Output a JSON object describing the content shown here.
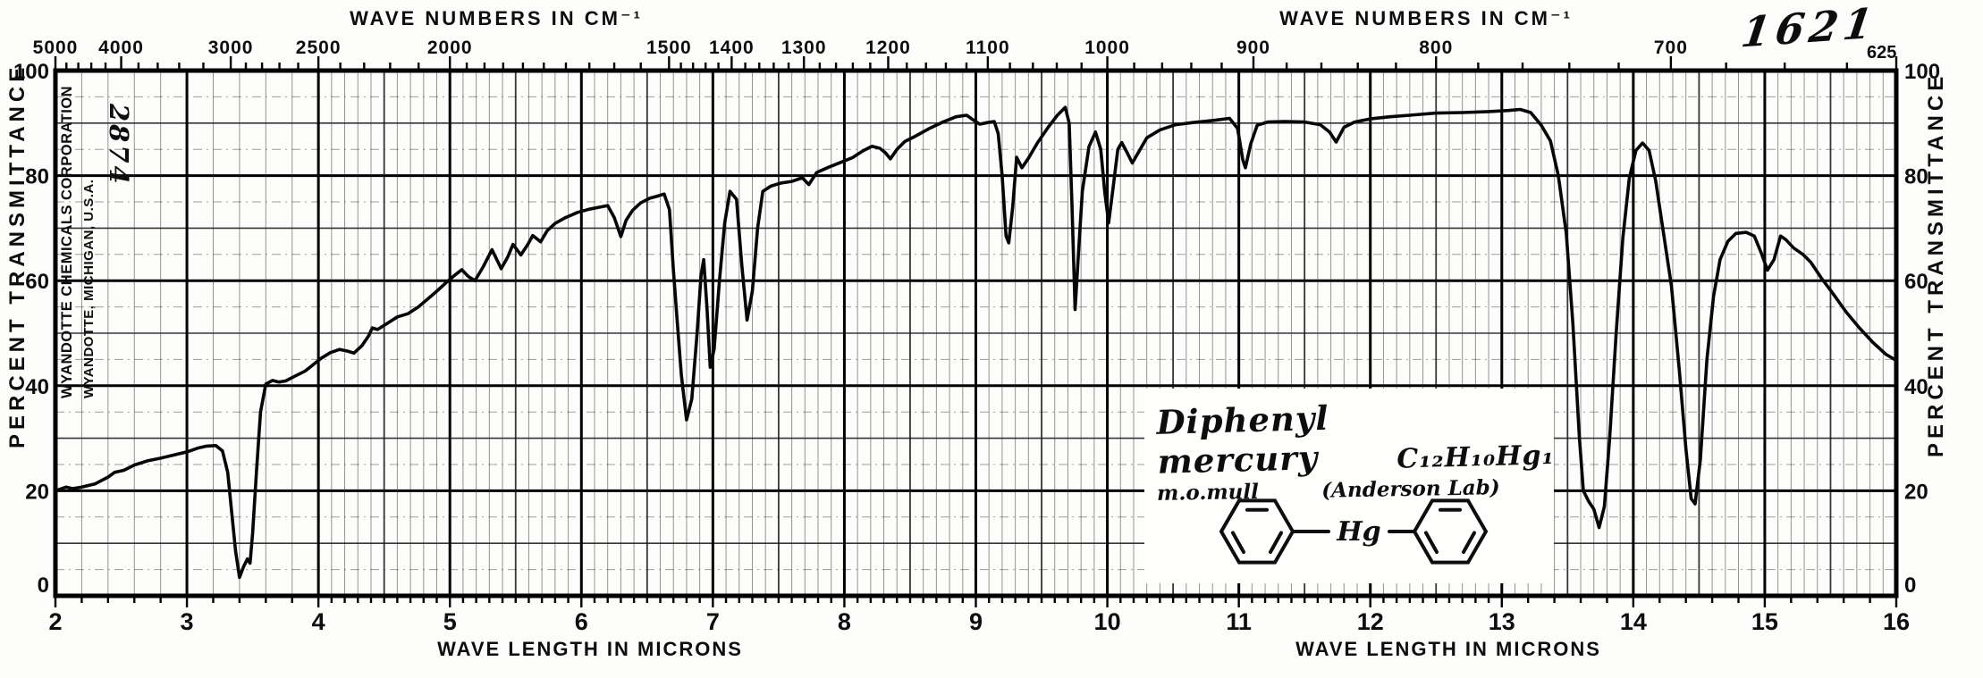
{
  "header": {
    "wave_numbers_title_left": "WAVE NUMBERS IN CM⁻¹",
    "wave_numbers_title_right": "WAVE NUMBERS IN CM⁻¹",
    "handwritten_id": "1621"
  },
  "stamps": {
    "company_line1": "WYANDOTTE CHEMICALS CORPORATION",
    "company_line2": "WYANDOTTE, MICHIGAN, U.S.A.",
    "handwritten_number": "2874"
  },
  "axes": {
    "left_label": "PERCENT TRANSMITTANCE",
    "right_label": "PERCENT TRANSMITTANCE",
    "bottom_label_left": "WAVE LENGTH IN MICRONS",
    "bottom_label_right": "WAVE LENGTH IN MICRONS",
    "transmittance_ticks": [
      100,
      80,
      60,
      40,
      20,
      0
    ],
    "micron_ticks": [
      2,
      3,
      4,
      5,
      6,
      7,
      8,
      9,
      10,
      11,
      12,
      13,
      14,
      15,
      16
    ],
    "wavenumber_major_ticks": [
      5000,
      4000,
      3000,
      2500,
      2000,
      1500,
      1400,
      1300,
      1200,
      1100,
      1000,
      900,
      800,
      700
    ],
    "wavenumber_end_tick": 625,
    "wavenumber_minor_ticks": [
      4800,
      4600,
      4400,
      4200,
      3800,
      3600,
      3400,
      3200,
      2900,
      2800,
      2700,
      2600,
      2400,
      2300,
      2200,
      2100,
      1950,
      1900,
      1850,
      1800,
      1750,
      1700,
      1650,
      1600,
      1550,
      1480,
      1460,
      1440,
      1420,
      1380,
      1360,
      1340,
      1320,
      1280,
      1260,
      1240,
      1220,
      1180,
      1160,
      1140,
      1120,
      1080,
      1060,
      1040,
      1020,
      980,
      960,
      940,
      920,
      880,
      860,
      840,
      820,
      780,
      760,
      740,
      720,
      680,
      660,
      640
    ]
  },
  "annotation": {
    "compound_name": "Diphenyl mercury",
    "formula": "C₁₂H₁₀Hg₁",
    "method": "m.o.mull",
    "lab": "(Anderson Lab)",
    "hg_symbol": "Hg",
    "structure": "phenyl-Hg-phenyl"
  },
  "chart_data": {
    "type": "line",
    "title": "Diphenyl mercury C₁₂H₁₀Hg₁",
    "xlabel": "WAVE LENGTH IN MICRONS",
    "ylabel": "PERCENT TRANSMITTANCE",
    "top_axis_label": "WAVE NUMBERS IN CM⁻¹",
    "x_units": "microns",
    "x_range": [
      2,
      16
    ],
    "y_range": [
      0,
      100
    ],
    "grid": true,
    "legend": "none",
    "absorption_minima_microns": [
      3.4,
      6.8,
      6.98,
      7.26,
      9.25,
      9.76,
      10.01,
      10.19,
      11.05,
      11.74,
      13.74,
      14.46,
      15.02
    ],
    "series": [
      {
        "name": "percent transmittance",
        "points": [
          [
            2.0,
            20.0
          ],
          [
            2.08,
            20.7
          ],
          [
            2.13,
            20.4
          ],
          [
            2.2,
            20.7
          ],
          [
            2.3,
            21.3
          ],
          [
            2.4,
            22.6
          ],
          [
            2.45,
            23.5
          ],
          [
            2.52,
            23.9
          ],
          [
            2.6,
            24.9
          ],
          [
            2.7,
            25.7
          ],
          [
            2.8,
            26.2
          ],
          [
            2.9,
            26.8
          ],
          [
            3.0,
            27.4
          ],
          [
            3.08,
            28.1
          ],
          [
            3.15,
            28.5
          ],
          [
            3.22,
            28.6
          ],
          [
            3.27,
            27.6
          ],
          [
            3.31,
            23.5
          ],
          [
            3.34,
            16.0
          ],
          [
            3.37,
            8.5
          ],
          [
            3.4,
            3.5
          ],
          [
            3.43,
            5.5
          ],
          [
            3.46,
            7.0
          ],
          [
            3.48,
            6.2
          ],
          [
            3.5,
            12.0
          ],
          [
            3.53,
            24.0
          ],
          [
            3.56,
            35.0
          ],
          [
            3.6,
            40.3
          ],
          [
            3.65,
            41.0
          ],
          [
            3.7,
            40.7
          ],
          [
            3.75,
            40.9
          ],
          [
            3.82,
            41.8
          ],
          [
            3.9,
            42.8
          ],
          [
            3.97,
            44.2
          ],
          [
            4.02,
            45.2
          ],
          [
            4.09,
            46.3
          ],
          [
            4.16,
            46.9
          ],
          [
            4.22,
            46.6
          ],
          [
            4.27,
            46.2
          ],
          [
            4.33,
            47.6
          ],
          [
            4.38,
            49.4
          ],
          [
            4.41,
            51.0
          ],
          [
            4.45,
            50.7
          ],
          [
            4.52,
            51.8
          ],
          [
            4.6,
            53.1
          ],
          [
            4.68,
            53.7
          ],
          [
            4.76,
            55.0
          ],
          [
            4.84,
            56.7
          ],
          [
            4.9,
            58.0
          ],
          [
            4.97,
            59.6
          ],
          [
            5.03,
            60.9
          ],
          [
            5.09,
            62.1
          ],
          [
            5.14,
            60.8
          ],
          [
            5.19,
            60.0
          ],
          [
            5.25,
            62.5
          ],
          [
            5.32,
            65.9
          ],
          [
            5.39,
            62.3
          ],
          [
            5.44,
            64.5
          ],
          [
            5.48,
            66.9
          ],
          [
            5.54,
            64.9
          ],
          [
            5.59,
            66.8
          ],
          [
            5.63,
            68.6
          ],
          [
            5.69,
            67.4
          ],
          [
            5.74,
            69.5
          ],
          [
            5.8,
            70.9
          ],
          [
            5.88,
            72.0
          ],
          [
            5.97,
            73.0
          ],
          [
            6.06,
            73.6
          ],
          [
            6.14,
            74.0
          ],
          [
            6.2,
            74.3
          ],
          [
            6.25,
            72.0
          ],
          [
            6.3,
            68.4
          ],
          [
            6.34,
            71.5
          ],
          [
            6.39,
            73.4
          ],
          [
            6.45,
            74.8
          ],
          [
            6.52,
            75.7
          ],
          [
            6.58,
            76.1
          ],
          [
            6.63,
            76.5
          ],
          [
            6.67,
            73.5
          ],
          [
            6.7,
            62.0
          ],
          [
            6.73,
            52.0
          ],
          [
            6.76,
            42.0
          ],
          [
            6.8,
            33.5
          ],
          [
            6.84,
            37.5
          ],
          [
            6.88,
            50.0
          ],
          [
            6.91,
            61.0
          ],
          [
            6.93,
            64.0
          ],
          [
            6.955,
            55.0
          ],
          [
            6.98,
            43.5
          ],
          [
            7.01,
            47.0
          ],
          [
            7.05,
            60.0
          ],
          [
            7.09,
            71.0
          ],
          [
            7.13,
            77.0
          ],
          [
            7.18,
            75.5
          ],
          [
            7.22,
            63.0
          ],
          [
            7.26,
            52.5
          ],
          [
            7.3,
            58.0
          ],
          [
            7.34,
            70.0
          ],
          [
            7.38,
            77.0
          ],
          [
            7.44,
            78.0
          ],
          [
            7.52,
            78.6
          ],
          [
            7.6,
            78.9
          ],
          [
            7.68,
            79.6
          ],
          [
            7.73,
            78.3
          ],
          [
            7.79,
            80.6
          ],
          [
            7.88,
            81.6
          ],
          [
            7.97,
            82.5
          ],
          [
            8.06,
            83.4
          ],
          [
            8.14,
            84.7
          ],
          [
            8.21,
            85.6
          ],
          [
            8.27,
            85.2
          ],
          [
            8.31,
            84.4
          ],
          [
            8.35,
            83.2
          ],
          [
            8.4,
            85.0
          ],
          [
            8.46,
            86.5
          ],
          [
            8.54,
            87.5
          ],
          [
            8.64,
            88.9
          ],
          [
            8.74,
            90.1
          ],
          [
            8.85,
            91.2
          ],
          [
            8.93,
            91.5
          ],
          [
            8.98,
            90.6
          ],
          [
            9.03,
            89.8
          ],
          [
            9.09,
            90.1
          ],
          [
            9.14,
            90.3
          ],
          [
            9.17,
            88.0
          ],
          [
            9.2,
            80.0
          ],
          [
            9.23,
            68.5
          ],
          [
            9.25,
            67.2
          ],
          [
            9.28,
            74.0
          ],
          [
            9.31,
            83.5
          ],
          [
            9.35,
            81.5
          ],
          [
            9.4,
            83.3
          ],
          [
            9.47,
            86.3
          ],
          [
            9.55,
            89.2
          ],
          [
            9.62,
            91.5
          ],
          [
            9.68,
            93.0
          ],
          [
            9.71,
            90.0
          ],
          [
            9.73,
            75.0
          ],
          [
            9.755,
            54.5
          ],
          [
            9.78,
            65.0
          ],
          [
            9.81,
            77.0
          ],
          [
            9.86,
            85.5
          ],
          [
            9.91,
            88.3
          ],
          [
            9.95,
            85.0
          ],
          [
            9.98,
            77.0
          ],
          [
            10.01,
            71.0
          ],
          [
            10.04,
            77.0
          ],
          [
            10.08,
            85.0
          ],
          [
            10.11,
            86.3
          ],
          [
            10.15,
            84.4
          ],
          [
            10.19,
            82.4
          ],
          [
            10.24,
            84.6
          ],
          [
            10.3,
            87.2
          ],
          [
            10.4,
            88.7
          ],
          [
            10.52,
            89.7
          ],
          [
            10.65,
            90.1
          ],
          [
            10.8,
            90.5
          ],
          [
            10.93,
            90.9
          ],
          [
            10.99,
            89.0
          ],
          [
            11.03,
            83.0
          ],
          [
            11.05,
            81.5
          ],
          [
            11.09,
            86.0
          ],
          [
            11.14,
            89.6
          ],
          [
            11.22,
            90.2
          ],
          [
            11.35,
            90.3
          ],
          [
            11.5,
            90.2
          ],
          [
            11.62,
            89.7
          ],
          [
            11.69,
            88.3
          ],
          [
            11.74,
            86.4
          ],
          [
            11.8,
            89.2
          ],
          [
            11.88,
            90.2
          ],
          [
            12.0,
            90.8
          ],
          [
            12.15,
            91.2
          ],
          [
            12.3,
            91.5
          ],
          [
            12.5,
            91.9
          ],
          [
            12.7,
            92.0
          ],
          [
            12.9,
            92.2
          ],
          [
            13.05,
            92.4
          ],
          [
            13.14,
            92.6
          ],
          [
            13.22,
            92.0
          ],
          [
            13.3,
            89.6
          ],
          [
            13.37,
            86.6
          ],
          [
            13.43,
            80.0
          ],
          [
            13.49,
            69.0
          ],
          [
            13.54,
            52.0
          ],
          [
            13.59,
            30.0
          ],
          [
            13.62,
            20.0
          ],
          [
            13.66,
            18.0
          ],
          [
            13.7,
            16.5
          ],
          [
            13.74,
            13.0
          ],
          [
            13.78,
            17.0
          ],
          [
            13.82,
            30.0
          ],
          [
            13.87,
            50.0
          ],
          [
            13.92,
            68.0
          ],
          [
            13.97,
            79.5
          ],
          [
            14.02,
            84.8
          ],
          [
            14.07,
            86.2
          ],
          [
            14.12,
            84.8
          ],
          [
            14.17,
            79.0
          ],
          [
            14.23,
            69.0
          ],
          [
            14.29,
            59.0
          ],
          [
            14.35,
            43.0
          ],
          [
            14.4,
            28.0
          ],
          [
            14.44,
            18.5
          ],
          [
            14.47,
            17.5
          ],
          [
            14.51,
            26.0
          ],
          [
            14.56,
            45.0
          ],
          [
            14.61,
            57.0
          ],
          [
            14.66,
            64.0
          ],
          [
            14.72,
            67.5
          ],
          [
            14.78,
            69.0
          ],
          [
            14.86,
            69.2
          ],
          [
            14.92,
            68.5
          ],
          [
            14.97,
            65.5
          ],
          [
            15.02,
            62.0
          ],
          [
            15.07,
            64.0
          ],
          [
            15.12,
            68.5
          ],
          [
            15.16,
            67.8
          ],
          [
            15.22,
            66.2
          ],
          [
            15.29,
            65.0
          ],
          [
            15.35,
            63.5
          ],
          [
            15.43,
            60.5
          ],
          [
            15.52,
            57.5
          ],
          [
            15.62,
            54.0
          ],
          [
            15.72,
            51.0
          ],
          [
            15.82,
            48.3
          ],
          [
            15.92,
            46.0
          ],
          [
            16.0,
            44.8
          ]
        ]
      }
    ]
  }
}
